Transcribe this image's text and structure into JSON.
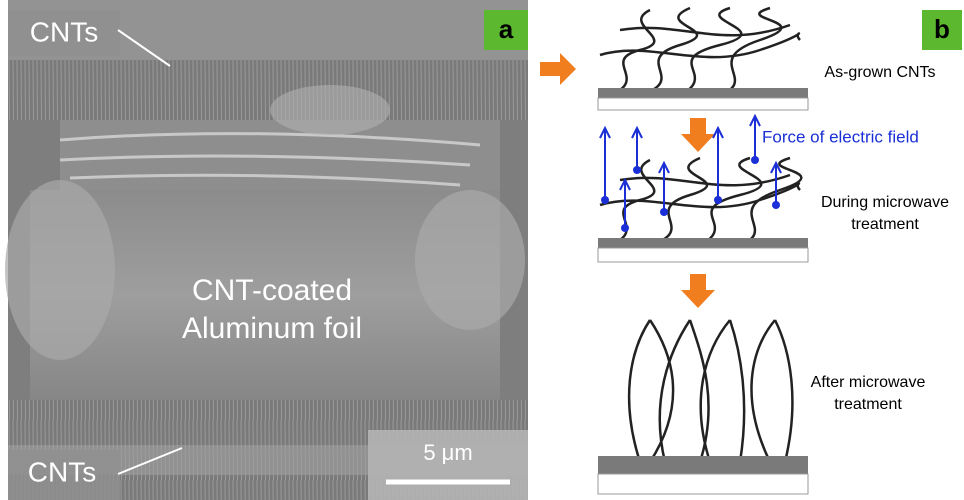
{
  "panel_a": {
    "label": "a",
    "top_label": "CNTs",
    "bottom_label": "CNTs",
    "center_lines": [
      "CNT-coated",
      "Aluminum  foil"
    ],
    "scale_bar": "5 μm"
  },
  "panel_b": {
    "label": "b",
    "steps": [
      {
        "lines": [
          "As-grown CNTs"
        ]
      },
      {
        "lines": [
          "During microwave",
          "treatment"
        ],
        "annotation": "Force of electric field"
      },
      {
        "lines": [
          "After microwave",
          "treatment"
        ]
      }
    ]
  }
}
